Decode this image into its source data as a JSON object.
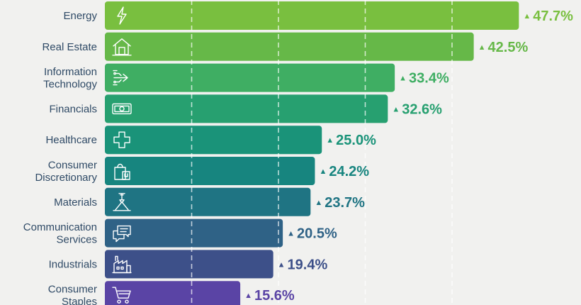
{
  "chart_data": {
    "type": "bar",
    "orientation": "horizontal",
    "title": "",
    "xlabel": "",
    "ylabel": "",
    "xlim": [
      0,
      50
    ],
    "grid": true,
    "value_marker": "▲",
    "categories": [
      {
        "lines": [
          "Energy"
        ],
        "value": 47.7,
        "label": "47.7%",
        "color": "#79bf3f",
        "icon": "lightning-icon"
      },
      {
        "lines": [
          "Real Estate"
        ],
        "value": 42.5,
        "label": "42.5%",
        "color": "#66b848",
        "icon": "house-icon"
      },
      {
        "lines": [
          "Information",
          "Technology"
        ],
        "value": 33.4,
        "label": "33.4%",
        "color": "#3fae63",
        "icon": "circuit-arrow-icon"
      },
      {
        "lines": [
          "Financials"
        ],
        "value": 32.6,
        "label": "32.6%",
        "color": "#27a070",
        "icon": "banknote-icon"
      },
      {
        "lines": [
          "Healthcare"
        ],
        "value": 25.0,
        "label": "25.0%",
        "color": "#1a9379",
        "icon": "medical-cross-icon"
      },
      {
        "lines": [
          "Consumer",
          "Discretionary"
        ],
        "value": 24.2,
        "label": "24.2%",
        "color": "#17857f",
        "icon": "shopping-bag-icon"
      },
      {
        "lines": [
          "Materials"
        ],
        "value": 23.7,
        "label": "23.7%",
        "color": "#1f7483",
        "icon": "crane-icon"
      },
      {
        "lines": [
          "Communication",
          "Services"
        ],
        "value": 20.5,
        "label": "20.5%",
        "color": "#2f6286",
        "icon": "chat-bubbles-icon"
      },
      {
        "lines": [
          "Industrials"
        ],
        "value": 19.4,
        "label": "19.4%",
        "color": "#3d5089",
        "icon": "factory-icon"
      },
      {
        "lines": [
          "Consumer",
          "Staples"
        ],
        "value": 15.6,
        "label": "15.6%",
        "color": "#5a44a5",
        "icon": "shopping-cart-icon"
      }
    ]
  }
}
